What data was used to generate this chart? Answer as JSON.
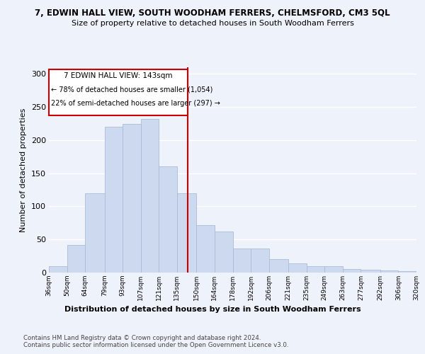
{
  "title": "7, EDWIN HALL VIEW, SOUTH WOODHAM FERRERS, CHELMSFORD, CM3 5QL",
  "subtitle": "Size of property relative to detached houses in South Woodham Ferrers",
  "xlabel": "Distribution of detached houses by size in South Woodham Ferrers",
  "ylabel": "Number of detached properties",
  "footer1": "Contains HM Land Registry data © Crown copyright and database right 2024.",
  "footer2": "Contains public sector information licensed under the Open Government Licence v3.0.",
  "annotation_title": "7 EDWIN HALL VIEW: 143sqm",
  "annotation_line1": "← 78% of detached houses are smaller (1,054)",
  "annotation_line2": "22% of semi-detached houses are larger (297) →",
  "bar_color": "#ccd9ee",
  "bar_edge_color": "#a8bdd8",
  "vline_color": "#cc0000",
  "bg_color": "#eef2fa",
  "annotation_box_color": "#ffffff",
  "annotation_box_edge": "#cc0000",
  "bin_edges": [
    36,
    50,
    64,
    79,
    93,
    107,
    121,
    135,
    150,
    164,
    178,
    192,
    206,
    221,
    235,
    249,
    263,
    277,
    292,
    306,
    320
  ],
  "bin_labels": [
    "36sqm",
    "50sqm",
    "64sqm",
    "79sqm",
    "93sqm",
    "107sqm",
    "121sqm",
    "135sqm",
    "150sqm",
    "164sqm",
    "178sqm",
    "192sqm",
    "206sqm",
    "221sqm",
    "235sqm",
    "249sqm",
    "263sqm",
    "277sqm",
    "292sqm",
    "306sqm",
    "320sqm"
  ],
  "values": [
    10,
    42,
    120,
    220,
    225,
    232,
    160,
    120,
    72,
    62,
    36,
    36,
    20,
    14,
    10,
    10,
    5,
    4,
    3,
    2
  ],
  "property_sqm": 143,
  "ylim": [
    0,
    310
  ],
  "yticks": [
    0,
    50,
    100,
    150,
    200,
    250,
    300
  ]
}
